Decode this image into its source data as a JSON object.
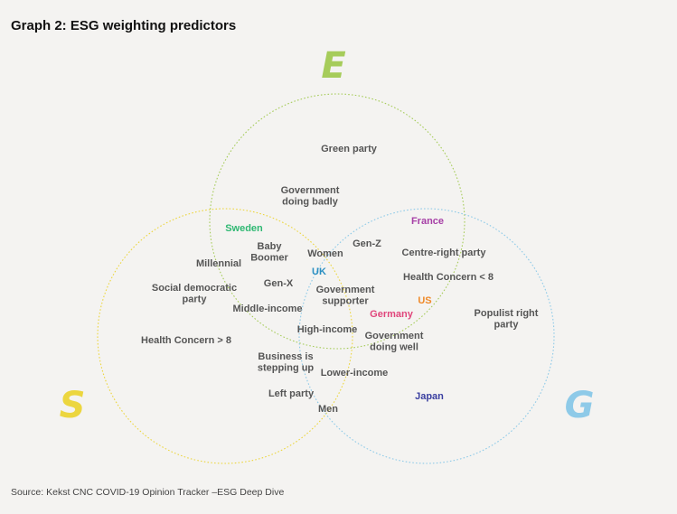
{
  "title": "Graph 2: ESG weighting predictors",
  "source": "Source: Kekst CNC COVID-19 Opinion Tracker –ESG Deep Dive",
  "circles": {
    "E": {
      "letter": "E",
      "color": "#a6cc5a"
    },
    "S": {
      "letter": "S",
      "color": "#ecd63f"
    },
    "G": {
      "letter": "G",
      "color": "#8ecae8"
    }
  },
  "label_color": "#555555",
  "labels": [
    {
      "id": "green-party",
      "lines": [
        "Green party"
      ]
    },
    {
      "id": "government-doing-badly",
      "lines": [
        "Government",
        "doing badly"
      ]
    },
    {
      "id": "baby-boomer",
      "lines": [
        "Baby",
        "Boomer"
      ]
    },
    {
      "id": "millennial",
      "lines": [
        "Millennial"
      ]
    },
    {
      "id": "women",
      "lines": [
        "Women"
      ]
    },
    {
      "id": "gen-z",
      "lines": [
        "Gen-Z"
      ]
    },
    {
      "id": "centre-right-party",
      "lines": [
        "Centre-right party"
      ]
    },
    {
      "id": "health-concern-lt-8",
      "lines": [
        "Health Concern < 8"
      ]
    },
    {
      "id": "social-democratic-party",
      "lines": [
        "Social democratic",
        "party"
      ]
    },
    {
      "id": "gen-x",
      "lines": [
        "Gen-X"
      ]
    },
    {
      "id": "government-supporter",
      "lines": [
        "Government",
        "supporter"
      ]
    },
    {
      "id": "middle-income",
      "lines": [
        "Middle-income"
      ]
    },
    {
      "id": "populist-right-party",
      "lines": [
        "Populist right",
        "party"
      ]
    },
    {
      "id": "high-income",
      "lines": [
        "High-income"
      ]
    },
    {
      "id": "government-doing-well",
      "lines": [
        "Government",
        "doing well"
      ]
    },
    {
      "id": "health-concern-gt-8",
      "lines": [
        "Health Concern > 8"
      ]
    },
    {
      "id": "business-stepping-up",
      "lines": [
        "Business is",
        "stepping up"
      ]
    },
    {
      "id": "lower-income",
      "lines": [
        "Lower-income"
      ]
    },
    {
      "id": "left-party",
      "lines": [
        "Left party"
      ]
    },
    {
      "id": "men",
      "lines": [
        "Men"
      ]
    }
  ],
  "countries": [
    {
      "id": "sweden",
      "name": "Sweden",
      "color": "#2eb872"
    },
    {
      "id": "france",
      "name": "France",
      "color": "#a63fa6"
    },
    {
      "id": "uk",
      "name": "UK",
      "color": "#2b8fc2"
    },
    {
      "id": "us",
      "name": "US",
      "color": "#ef8a2a"
    },
    {
      "id": "germany",
      "name": "Germany",
      "color": "#e0457b"
    },
    {
      "id": "japan",
      "name": "Japan",
      "color": "#3a3fa0"
    }
  ]
}
